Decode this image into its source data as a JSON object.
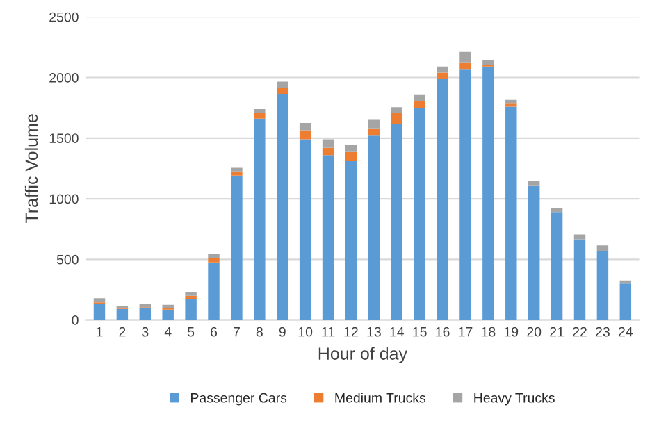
{
  "chart_data": {
    "type": "bar",
    "stacked": true,
    "xlabel": "Hour of day",
    "ylabel": "Traffic Volume",
    "categories": [
      "1",
      "2",
      "3",
      "4",
      "5",
      "6",
      "7",
      "8",
      "9",
      "10",
      "11",
      "12",
      "13",
      "14",
      "15",
      "16",
      "17",
      "18",
      "19",
      "20",
      "21",
      "22",
      "23",
      "24"
    ],
    "series": [
      {
        "name": "Passenger Cars",
        "color": "#5b9bd5",
        "values": [
          135,
          90,
          100,
          85,
          170,
          475,
          1190,
          1660,
          1860,
          1490,
          1360,
          1310,
          1520,
          1615,
          1750,
          1990,
          2065,
          2090,
          1760,
          1105,
          890,
          665,
          570,
          300
        ]
      },
      {
        "name": "Medium Trucks",
        "color": "#ed7d31",
        "values": [
          10,
          5,
          5,
          10,
          30,
          35,
          35,
          50,
          55,
          75,
          60,
          75,
          60,
          90,
          55,
          50,
          60,
          10,
          30,
          null,
          null,
          null,
          null,
          null
        ]
      },
      {
        "name": "Heavy Trucks",
        "color": "#a5a5a5",
        "values": [
          35,
          20,
          30,
          30,
          30,
          35,
          30,
          30,
          50,
          60,
          70,
          60,
          70,
          50,
          50,
          50,
          85,
          40,
          25,
          40,
          30,
          40,
          45,
          25
        ]
      }
    ],
    "ylim": [
      0,
      2500
    ],
    "yticks": [
      0,
      500,
      1000,
      1500,
      2000,
      2500
    ],
    "grid": "y",
    "legend": "bottom"
  }
}
